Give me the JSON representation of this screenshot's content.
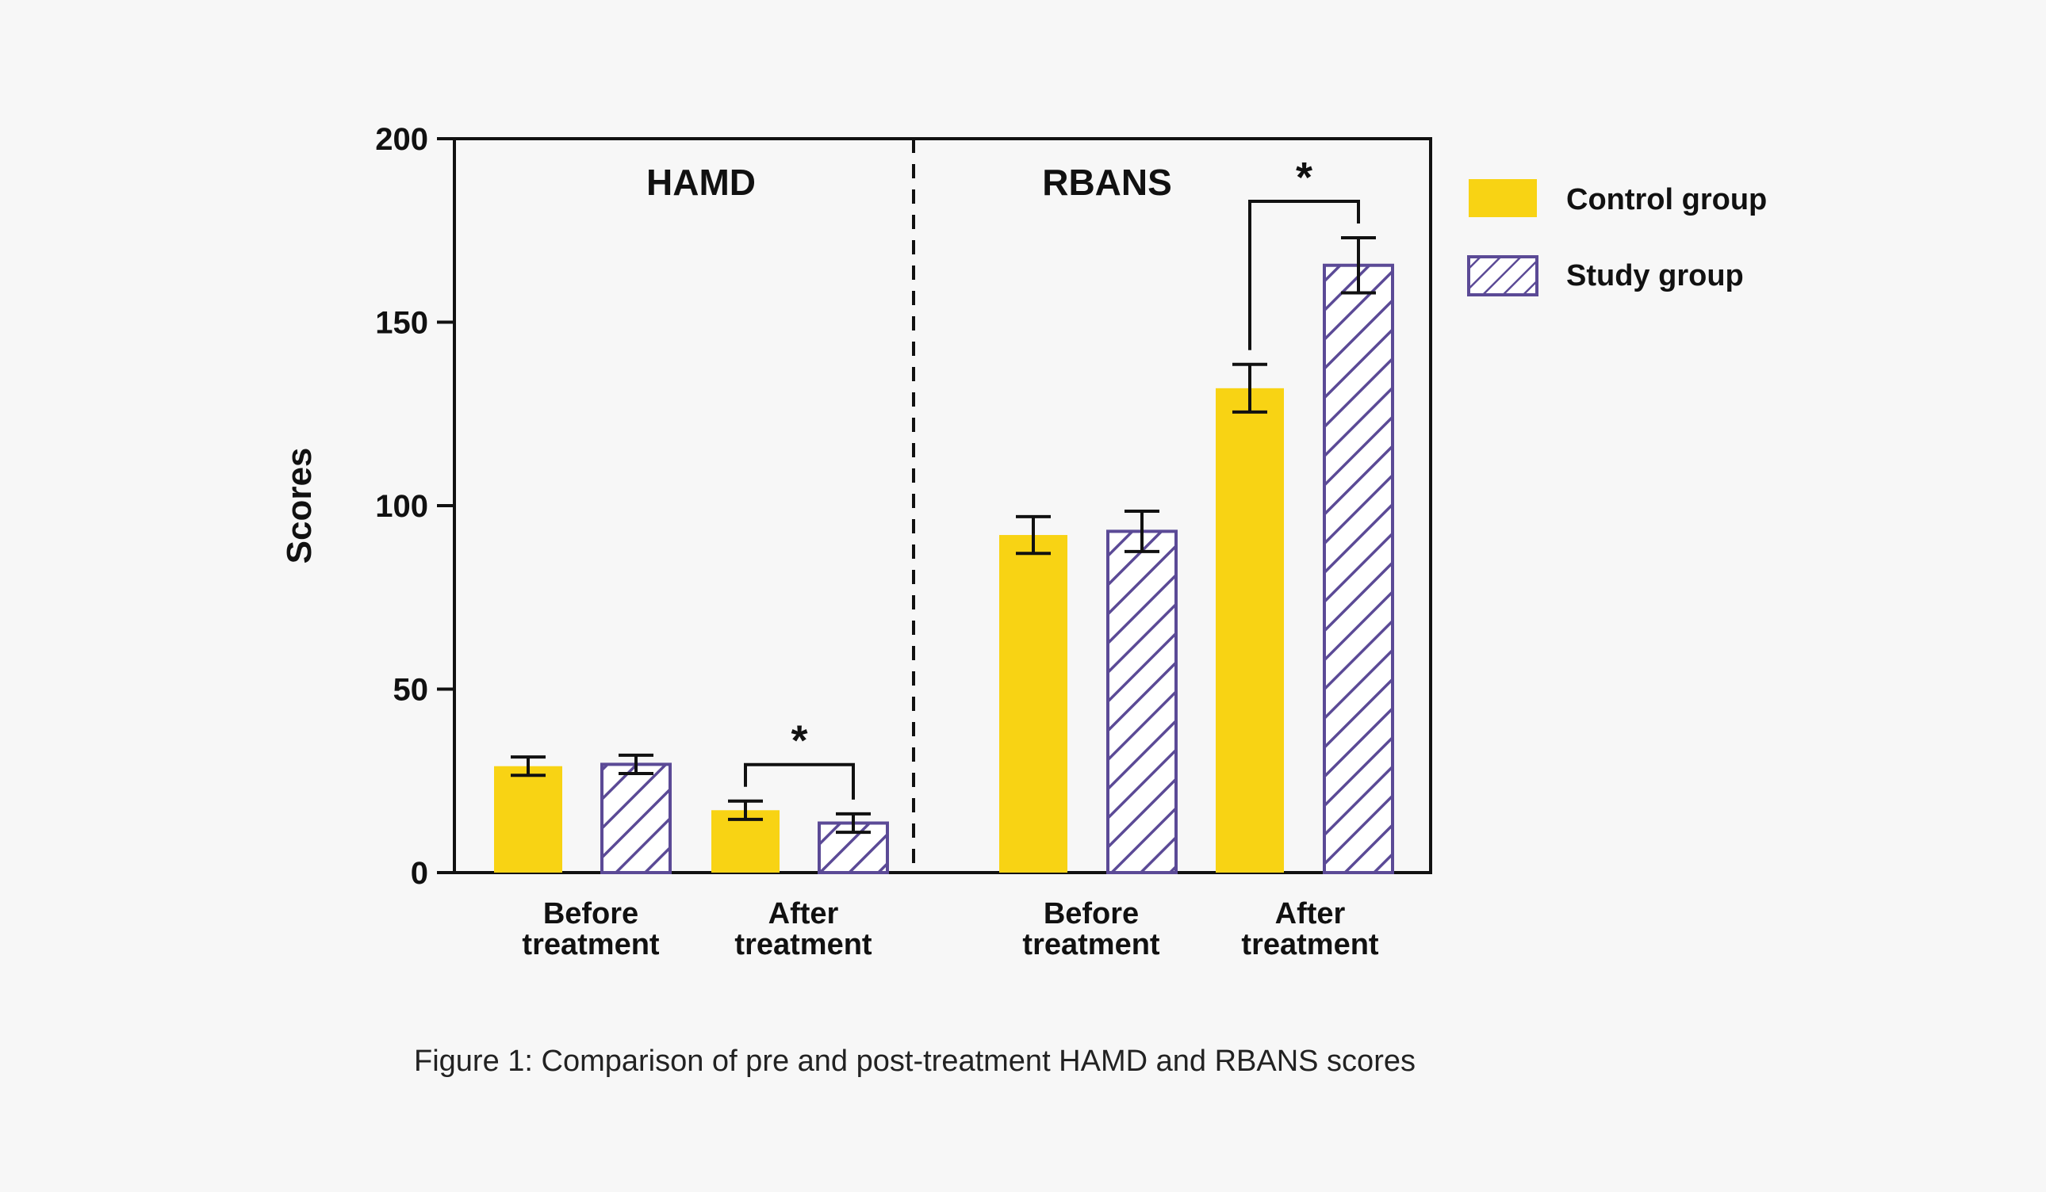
{
  "chart_data": {
    "type": "bar",
    "ylabel": "Scores",
    "ylim": [
      0,
      200
    ],
    "yticks": [
      0,
      50,
      100,
      150,
      200
    ],
    "panels": [
      {
        "title": "HAMD",
        "categories": [
          {
            "line1": "Before",
            "line2": "treatment"
          },
          {
            "line1": "After",
            "line2": "treatment"
          }
        ],
        "series": [
          {
            "group": "control",
            "values": [
              29,
              17
            ],
            "errors": [
              2.5,
              2.5
            ]
          },
          {
            "group": "study",
            "values": [
              29.5,
              13.5
            ],
            "errors": [
              2.5,
              2.5
            ]
          }
        ],
        "significance": [
          {
            "category_index": 1,
            "label": "*"
          }
        ]
      },
      {
        "title": "RBANS",
        "categories": [
          {
            "line1": "Before",
            "line2": "treatment"
          },
          {
            "line1": "After",
            "line2": "treatment"
          }
        ],
        "series": [
          {
            "group": "control",
            "values": [
              92,
              132
            ],
            "errors": [
              5,
              6.5
            ]
          },
          {
            "group": "study",
            "values": [
              93,
              165.5
            ],
            "errors": [
              5.5,
              7.5
            ]
          }
        ],
        "significance": [
          {
            "category_index": 1,
            "label": "*"
          }
        ]
      }
    ],
    "legend": {
      "position": "right",
      "items": [
        {
          "key": "control",
          "label": "Control group",
          "color": "#f8d314",
          "pattern": "solid"
        },
        {
          "key": "study",
          "label": "Study group",
          "color": "#5b4a96",
          "pattern": "diagonal-hatch"
        }
      ]
    },
    "panel_divider": "dashed",
    "grid": false
  },
  "caption": "Figure 1: Comparison of pre and post-treatment HAMD and RBANS scores"
}
